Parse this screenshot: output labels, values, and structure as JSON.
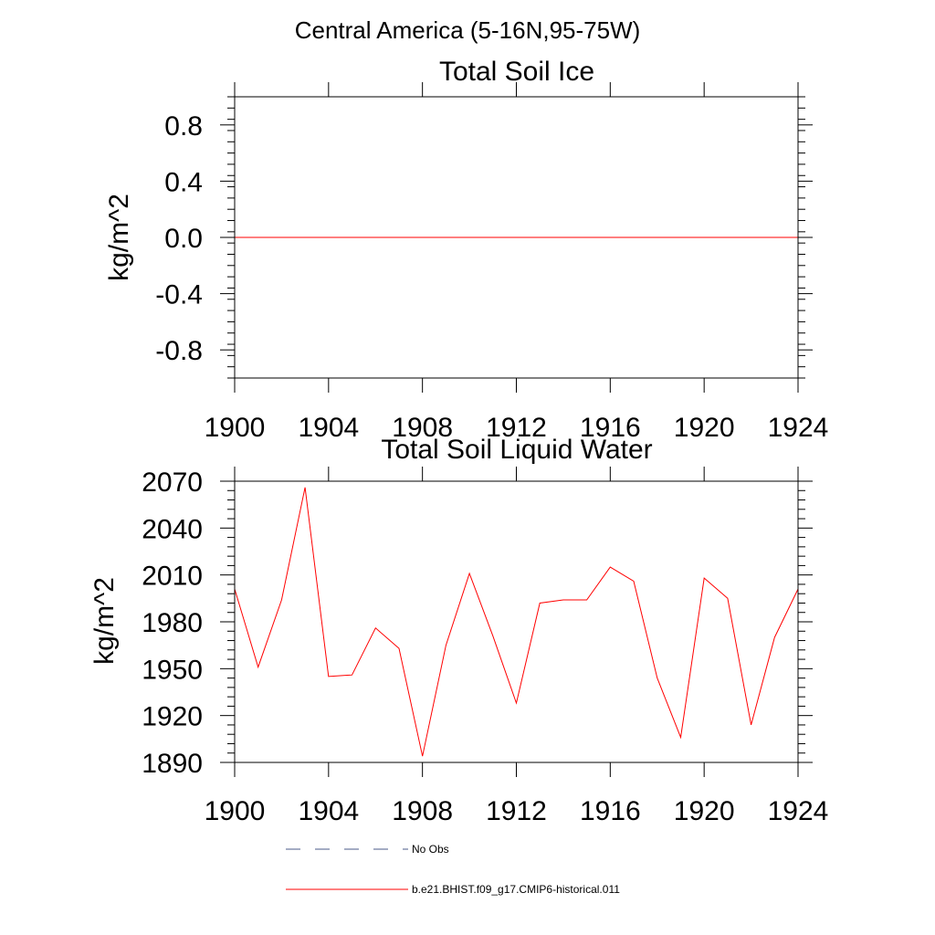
{
  "figure": {
    "suptitle": "Central America (5-16N,95-75W)"
  },
  "chart_data": [
    {
      "type": "line",
      "title": "Total Soil Ice",
      "ylabel": "kg/m^2",
      "xlabel": "",
      "xlim": [
        1900,
        1924
      ],
      "ylim": [
        -1.0,
        1.0
      ],
      "xticks": [
        "1900",
        "1904",
        "1908",
        "1912",
        "1916",
        "1920",
        "1924"
      ],
      "yticks": [
        "0.8",
        "0.4",
        "0.0",
        "-0.4",
        "-0.8"
      ],
      "ytick_values": [
        0.8,
        0.4,
        0.0,
        -0.4,
        -0.8
      ],
      "series": [
        {
          "color": "#ff0000",
          "x": [
            1900,
            1901,
            1902,
            1903,
            1904,
            1905,
            1906,
            1907,
            1908,
            1909,
            1910,
            1911,
            1912,
            1913,
            1914,
            1915,
            1916,
            1917,
            1918,
            1919,
            1920,
            1921,
            1922,
            1923,
            1924
          ],
          "values": [
            0,
            0,
            0,
            0,
            0,
            0,
            0,
            0,
            0,
            0,
            0,
            0,
            0,
            0,
            0,
            0,
            0,
            0,
            0,
            0,
            0,
            0,
            0,
            0,
            0
          ]
        }
      ]
    },
    {
      "type": "line",
      "title": "Total Soil Liquid Water",
      "ylabel": "kg/m^2",
      "xlabel": "",
      "xlim": [
        1900,
        1924
      ],
      "ylim": [
        1890,
        2070
      ],
      "xticks": [
        "1900",
        "1904",
        "1908",
        "1912",
        "1916",
        "1920",
        "1924"
      ],
      "yticks": [
        "2070",
        "2040",
        "2010",
        "1980",
        "1950",
        "1920",
        "1890"
      ],
      "ytick_values": [
        2070,
        2040,
        2010,
        1980,
        1950,
        1920,
        1890
      ],
      "series": [
        {
          "color": "#ff0000",
          "x": [
            1900,
            1901,
            1902,
            1903,
            1904,
            1905,
            1906,
            1907,
            1908,
            1909,
            1910,
            1911,
            1912,
            1913,
            1914,
            1915,
            1916,
            1917,
            1918,
            1919,
            1920,
            1921,
            1922,
            1923,
            1924
          ],
          "values": [
            2001,
            1951,
            1994,
            2066,
            1945,
            1946,
            1976,
            1963,
            1894,
            1965,
            2011,
            1971,
            1928,
            1992,
            1994,
            1994,
            2015,
            2006,
            1944,
            1906,
            2008,
            1995,
            1914,
            1970,
            2001
          ]
        }
      ]
    }
  ],
  "legend": [
    {
      "label": "No Obs",
      "color": "#4a5a8a",
      "style": "dashed"
    },
    {
      "label": "b.e21.BHIST.f09_g17.CMIP6-historical.011",
      "color": "#ff0000",
      "style": "solid"
    }
  ]
}
